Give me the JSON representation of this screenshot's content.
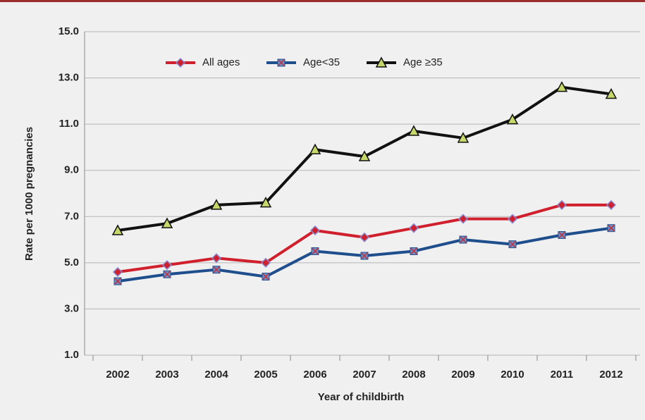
{
  "chart_data": {
    "type": "line",
    "x_label": "Year of childbirth",
    "y_label": "Rate per 1000 pregnancies",
    "categories": [
      "2002",
      "2003",
      "2004",
      "2005",
      "2006",
      "2007",
      "2008",
      "2009",
      "2010",
      "2011",
      "2012"
    ],
    "series": [
      {
        "name": "All ages",
        "color": "#d0202e",
        "marker": "diamond",
        "values": [
          4.6,
          4.9,
          5.2,
          5.0,
          6.4,
          6.1,
          6.5,
          6.9,
          6.9,
          7.5,
          7.5
        ]
      },
      {
        "name": "Age<35",
        "color": "#1f4e8c",
        "marker": "square",
        "values": [
          4.2,
          4.5,
          4.7,
          4.4,
          5.5,
          5.3,
          5.5,
          6.0,
          5.8,
          6.2,
          6.5
        ]
      },
      {
        "name": "Age ≥35",
        "color": "#111111",
        "marker": "triangle",
        "values": [
          6.4,
          6.7,
          7.5,
          7.6,
          9.9,
          9.6,
          10.7,
          10.4,
          11.2,
          12.6,
          12.3
        ]
      }
    ],
    "ylim": [
      1,
      15
    ],
    "yticks": [
      {
        "value": 1,
        "label": "1.0"
      },
      {
        "value": 3,
        "label": "3.0"
      },
      {
        "value": 5,
        "label": "5.0"
      },
      {
        "value": 7,
        "label": "7.0"
      },
      {
        "value": 9,
        "label": "9.0"
      },
      {
        "value": 11,
        "label": "11.0"
      },
      {
        "value": 13,
        "label": "13.0"
      },
      {
        "value": 15,
        "label": "15.0"
      }
    ],
    "grid": true,
    "legend": "top"
  }
}
